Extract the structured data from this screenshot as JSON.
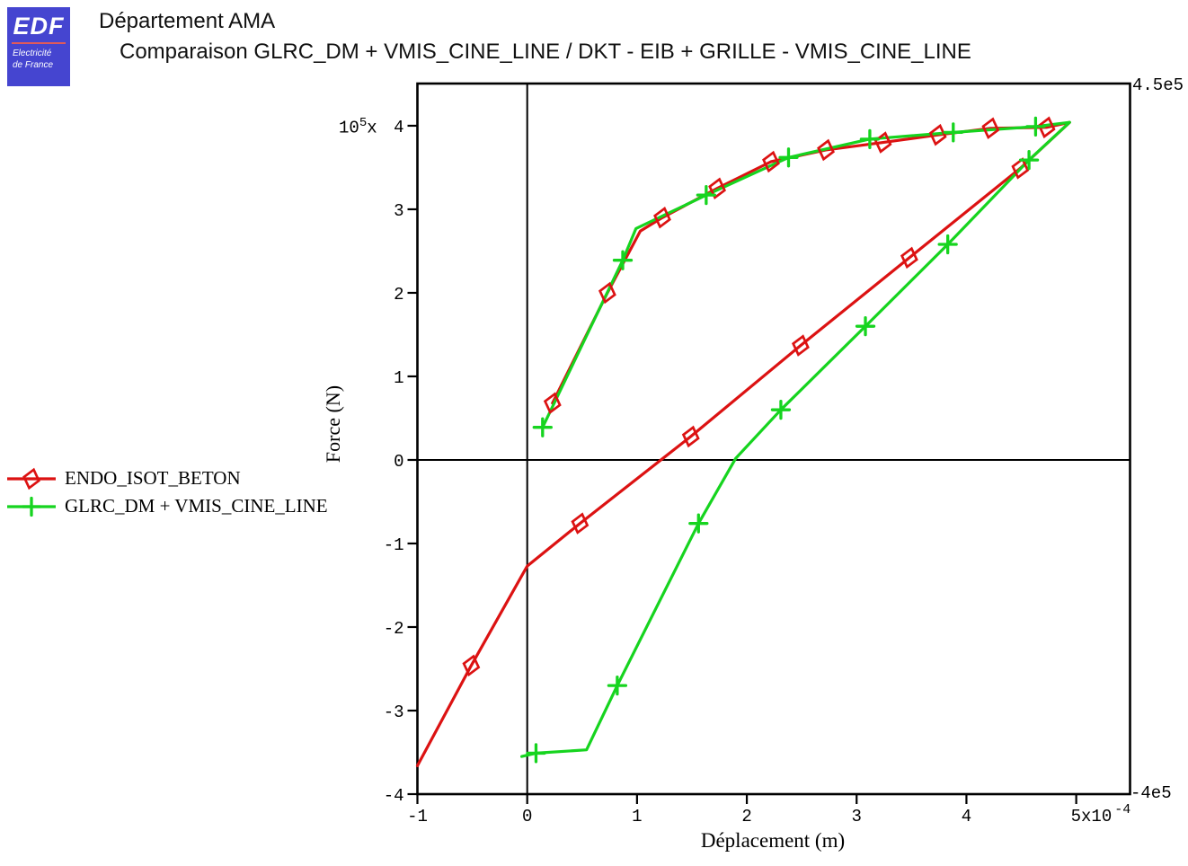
{
  "header": {
    "logo": {
      "edf": "EDF",
      "sub1": "Electricité",
      "sub2": "de France",
      "bg_color": "#4545D0",
      "stripe_color": "#E05A5A"
    },
    "department": "Département AMA",
    "title": "Comparaison GLRC_DM + VMIS_CINE_LINE / DKT - EIB + GRILLE - VMIS_CINE_LINE"
  },
  "legend": {
    "items": [
      {
        "label": "ENDO_ISOT_BETON"
      },
      {
        "label": "GLRC_DM + VMIS_CINE_LINE"
      }
    ]
  },
  "chart_data": {
    "type": "line",
    "title": "Comparaison GLRC_DM + VMIS_CINE_LINE / DKT - EIB + GRILLE - VMIS_CINE_LINE",
    "xlabel": "Déplacement (m)",
    "ylabel": "Force (N)",
    "x_units_multiplier": "1e-4",
    "y_units_multiplier": "1e5",
    "xlim": [
      -1,
      5.49
    ],
    "ylim": [
      -4,
      4.505
    ],
    "grid": false,
    "zero_axes": true,
    "legend_position": "left-outside",
    "y_power_label": {
      "mant": "10",
      "exp": "5",
      "suffix": "x"
    },
    "x_ticks": [
      {
        "v": -1,
        "label": "-1"
      },
      {
        "v": 0,
        "label": "0"
      },
      {
        "v": 1,
        "label": "1"
      },
      {
        "v": 2,
        "label": "2"
      },
      {
        "v": 3,
        "label": "3"
      },
      {
        "v": 4,
        "label": "4"
      },
      {
        "v": 5,
        "label": "5x10",
        "exp": "-4"
      }
    ],
    "y_ticks": [
      {
        "v": 4,
        "label": "4"
      },
      {
        "v": 3,
        "label": "3"
      },
      {
        "v": 2,
        "label": "2"
      },
      {
        "v": 1,
        "label": "1"
      },
      {
        "v": 0,
        "label": "0"
      },
      {
        "v": -1,
        "label": "-1"
      },
      {
        "v": -2,
        "label": "-2"
      },
      {
        "v": -3,
        "label": "-3"
      },
      {
        "v": -4,
        "label": "-4"
      }
    ],
    "corner_labels": {
      "top_right": "4.5e5",
      "bottom_right": "-4e5"
    },
    "series": [
      {
        "name": "ENDO_ISOT_BETON",
        "color": "#DC1212",
        "marker": "diamond",
        "points": [
          [
            0.23,
            0.68
          ],
          [
            0.73,
            2.0
          ],
          [
            1.03,
            2.74
          ],
          [
            1.23,
            2.9
          ],
          [
            1.73,
            3.25
          ],
          [
            2.22,
            3.57
          ],
          [
            2.72,
            3.71
          ],
          [
            3.24,
            3.8
          ],
          [
            3.74,
            3.89
          ],
          [
            4.22,
            3.97
          ],
          [
            4.73,
            3.98
          ],
          [
            4.94,
            4.04
          ],
          [
            4.49,
            3.49
          ],
          [
            3.48,
            2.42
          ],
          [
            2.49,
            1.37
          ],
          [
            1.49,
            0.28
          ],
          [
            0.48,
            -0.76
          ],
          [
            0.0,
            -1.27
          ],
          [
            -0.51,
            -2.46
          ],
          [
            -1.0,
            -3.66
          ]
        ],
        "markers_at": [
          [
            0.23,
            0.68
          ],
          [
            0.73,
            2.0
          ],
          [
            1.23,
            2.9
          ],
          [
            1.73,
            3.25
          ],
          [
            2.22,
            3.57
          ],
          [
            2.72,
            3.71
          ],
          [
            3.24,
            3.8
          ],
          [
            3.74,
            3.89
          ],
          [
            4.22,
            3.97
          ],
          [
            4.73,
            3.98
          ],
          [
            4.49,
            3.49
          ],
          [
            3.48,
            2.42
          ],
          [
            2.49,
            1.37
          ],
          [
            1.49,
            0.28
          ],
          [
            0.48,
            -0.76
          ],
          [
            -0.51,
            -2.46
          ]
        ]
      },
      {
        "name": "GLRC_DM + VMIS_CINE_LINE",
        "color": "#16D41F",
        "marker": "plus",
        "points": [
          [
            0.14,
            0.39
          ],
          [
            0.87,
            2.39
          ],
          [
            0.99,
            2.77
          ],
          [
            1.63,
            3.17
          ],
          [
            2.38,
            3.62
          ],
          [
            3.12,
            3.84
          ],
          [
            3.88,
            3.92
          ],
          [
            4.63,
            3.99
          ],
          [
            4.94,
            4.04
          ],
          [
            4.57,
            3.59
          ],
          [
            3.83,
            2.58
          ],
          [
            3.08,
            1.6
          ],
          [
            2.31,
            0.6
          ],
          [
            1.9,
            0.02
          ],
          [
            1.56,
            -0.76
          ],
          [
            0.82,
            -2.7
          ],
          [
            0.54,
            -3.47
          ],
          [
            0.08,
            -3.51
          ],
          [
            -0.05,
            -3.55
          ]
        ],
        "markers_at": [
          [
            0.14,
            0.39
          ],
          [
            0.87,
            2.39
          ],
          [
            1.63,
            3.17
          ],
          [
            2.38,
            3.62
          ],
          [
            3.12,
            3.84
          ],
          [
            3.88,
            3.92
          ],
          [
            4.63,
            3.99
          ],
          [
            4.57,
            3.59
          ],
          [
            3.83,
            2.58
          ],
          [
            3.08,
            1.6
          ],
          [
            2.31,
            0.6
          ],
          [
            1.56,
            -0.76
          ],
          [
            0.82,
            -2.7
          ],
          [
            0.08,
            -3.51
          ]
        ]
      }
    ]
  }
}
